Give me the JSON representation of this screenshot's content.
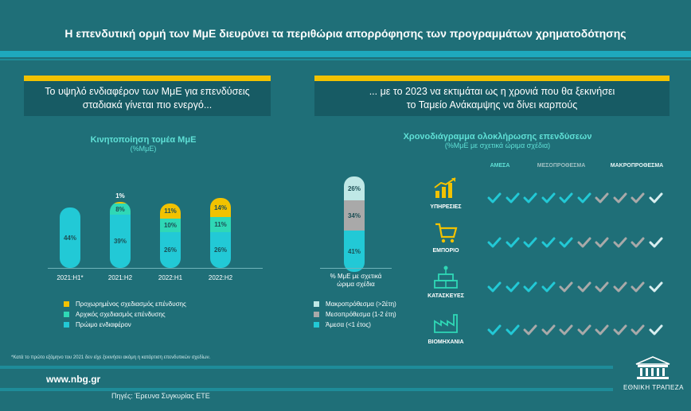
{
  "title": "Η επενδυτική ορμή των ΜμΕ διευρύνει τα περιθώρια απορρόφησης των προγραμμάτων χρηματοδότησης",
  "left_box": [
    "Το υψηλό ενδιαφέρον των ΜμΕ για επενδύσεις",
    "σταδιακά γίνεται πιο ενεργό..."
  ],
  "right_box": [
    "... με το 2023 να εκτιμάται ως η χρονιά που θα ξεκινήσει",
    "το Ταμείο Ανάκαμψης να δίνει καρπούς"
  ],
  "colors": {
    "background": "#1f6f78",
    "accent_yellow": "#f2c200",
    "accent_cyan": "#22c9d6",
    "accent_green": "#2fd8b6",
    "grey": "#a9a9a9"
  },
  "chart_data": [
    {
      "type": "bar",
      "stacked": true,
      "title": "Κινητοποίηση τομέα ΜμΕ",
      "subtitle": "(%ΜμΕ)",
      "categories": [
        "2021:H1*",
        "2021:H2",
        "2022:H1",
        "2022:H2"
      ],
      "series": [
        {
          "name": "Πρώιμο ενδιαφέρον",
          "values": [
            44,
            39,
            26,
            26
          ],
          "labels": [
            "44%",
            "39%",
            "26%",
            "26%"
          ]
        },
        {
          "name": "Αρχικός σχεδιασμός επένδυσης",
          "values": [
            0,
            8,
            10,
            11
          ],
          "labels": [
            "",
            "8%",
            "10%",
            "11%"
          ]
        },
        {
          "name": "Προχωρημένος σχεδιασμός επένδυσης",
          "values": [
            0,
            1,
            11,
            14
          ],
          "labels": [
            "",
            "1%",
            "11%",
            "14%"
          ]
        }
      ],
      "legend": [
        "Προχωρημένος σχεδιασμός επένδυσης",
        "Αρχικός σχεδιασμός επένδυσης",
        "Πρώιμο ενδιαφέρον"
      ],
      "footnote": "*Κατά το πρώτο εξάμηνο του 2021 δεν είχε ξεκινήσει ακόμη η κατάρτιση επενδυτικών σχεδίων."
    },
    {
      "type": "bar",
      "stacked": true,
      "xlabel": "% ΜμΕ με σχετικά ώριμα σχέδια",
      "series": [
        {
          "name": "Άμεσα (<1 έτος)",
          "value": 41,
          "label": "41%"
        },
        {
          "name": "Μεσοπρόθεσμα (1-2 έτη)",
          "value": 34,
          "label": "34%"
        },
        {
          "name": "Μακροπρόθεσμα (>2έτη)",
          "value": 26,
          "label": "26%"
        }
      ],
      "legend": [
        "Μακροπρόθεσμα (>2έτη)",
        "Μεσοπρόθεσμα (1-2 έτη)",
        "Άμεσα (<1 έτος)"
      ]
    },
    {
      "type": "table",
      "title": "Χρονοδιάγραμμα ολοκλήρωσης επενδύσεων",
      "subtitle": "(%ΜμΕ με σχετικά ώριμα σχέδια)",
      "columns": [
        "ΑΜΕΣΑ",
        "ΜΕΣΟΠΡΟΘΕΣΜΑ",
        "ΜΑΚΡΟΠΡΟΘΕΣΜΑ"
      ],
      "total_checks": 10,
      "rows": [
        {
          "sector": "ΥΠΗΡΕΣΙΕΣ",
          "icon": "growth-chart-icon",
          "immediate_checks": 6,
          "icon_color": "#f2c200"
        },
        {
          "sector": "ΕΜΠΟΡΙΟ",
          "icon": "shopping-cart-icon",
          "immediate_checks": 5,
          "icon_color": "#f2c200"
        },
        {
          "sector": "ΚΑΤΑΣΚΕΥΕΣ",
          "icon": "brick-wall-icon",
          "immediate_checks": 4,
          "icon_color": "#2fd8b6"
        },
        {
          "sector": "ΒΙΟΜΗΧΑΝΙΑ",
          "icon": "factory-icon",
          "immediate_checks": 2,
          "icon_color": "#2fd8b6"
        }
      ]
    }
  ],
  "footer": {
    "url": "www.nbg.gr",
    "source": "Πηγές: Έρευνα Συγκυρίας ΕΤΕ",
    "bank": "ΕΘΝΙΚΗ ΤΡΑΠΕΖΑ"
  }
}
